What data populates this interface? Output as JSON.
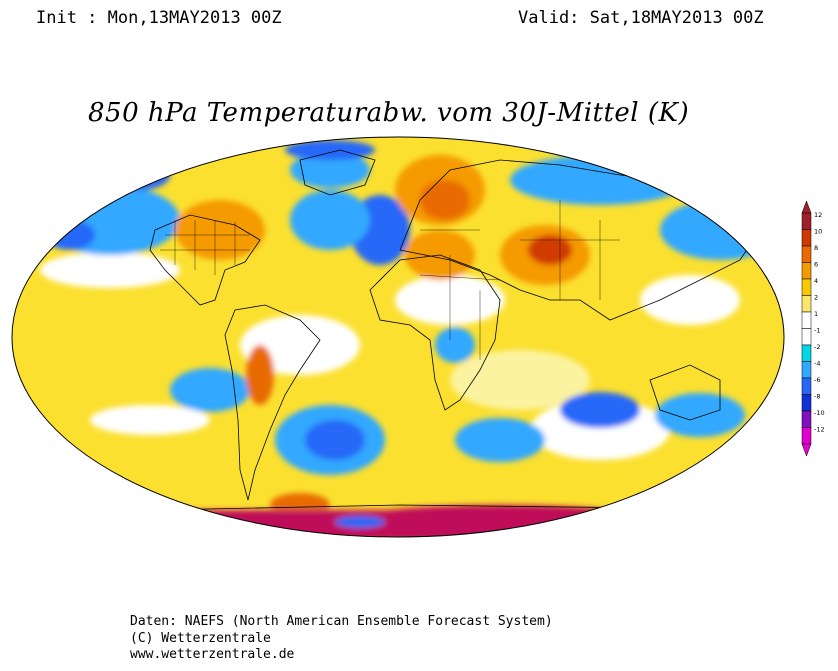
{
  "header": {
    "init": "Init : Mon,13MAY2013 00Z",
    "valid": "Valid: Sat,18MAY2013 00Z"
  },
  "title": "850 hPa Temperaturabw. vom 30J-Mittel (K)",
  "colorbar": {
    "labels": [
      "12",
      "10",
      "8",
      "6",
      "4",
      "2",
      "1",
      "-1",
      "-2",
      "-4",
      "-6",
      "-8",
      "-10",
      "-12"
    ],
    "colors": [
      "#a0202a",
      "#d03a00",
      "#e86a00",
      "#f59a00",
      "#f8c800",
      "#fbe86a",
      "#ffffff",
      "#ffffff",
      "#00d8e6",
      "#30a8ff",
      "#2868f8",
      "#1030d8",
      "#8010c0",
      "#e000d0"
    ]
  },
  "footer": {
    "line1": "Daten: NAEFS (North American Ensemble Forecast System)",
    "line2": "(C) Wetterzentrale",
    "line3": "www.wetterzentrale.de"
  }
}
